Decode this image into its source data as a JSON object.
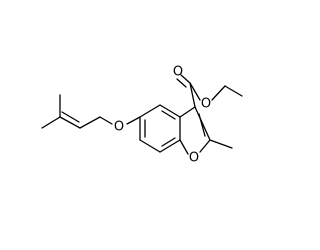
{
  "nodes": [
    {
      "label": "O"
    },
    {
      "label": "O"
    },
    {
      "label": "O"
    },
    {
      "label": "O"
    }
  ]
}
